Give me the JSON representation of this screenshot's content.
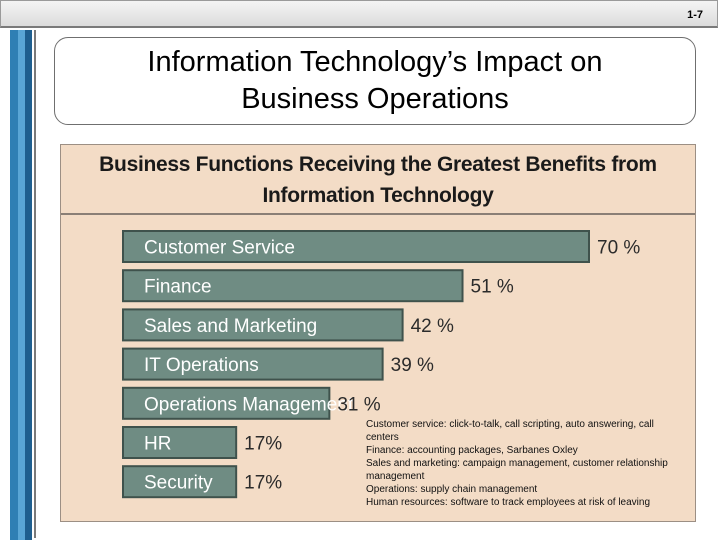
{
  "slide": {
    "number": "1-7",
    "title": "Information Technology’s Impact on Business Operations"
  },
  "colors": {
    "panel_background": "#f3dcc6",
    "bar_fill": "#6f8c83",
    "bar_border": "#3f524c",
    "bar_label": "#ffffff",
    "value_label": "#2b2b2b",
    "left_stripes": [
      "#2f7fb4",
      "#5aa6d6",
      "#1f5f8f"
    ]
  },
  "chart_data": {
    "type": "bar",
    "orientation": "horizontal",
    "title": "Business Functions Receiving the Greatest Benefits from Information Technology",
    "categories": [
      "Customer Service",
      "Finance",
      "Sales and Marketing",
      "IT Operations",
      "Operations Management",
      "HR",
      "Security"
    ],
    "values": [
      70,
      51,
      42,
      39,
      31,
      17,
      17
    ],
    "value_labels": [
      "70 %",
      "51 %",
      "42 %",
      "39 %",
      "31 %",
      "17%",
      "17%"
    ],
    "unit": "%",
    "xlim": [
      0,
      70
    ],
    "grid": false,
    "legend": "none"
  },
  "notes": [
    "Customer service: click-to-talk, call scripting, auto answering, call centers",
    "Finance: accounting packages, Sarbanes Oxley",
    "Sales and marketing: campaign management, customer relationship management",
    "Operations: supply chain management",
    "Human resources: software to track employees at risk of leaving"
  ]
}
